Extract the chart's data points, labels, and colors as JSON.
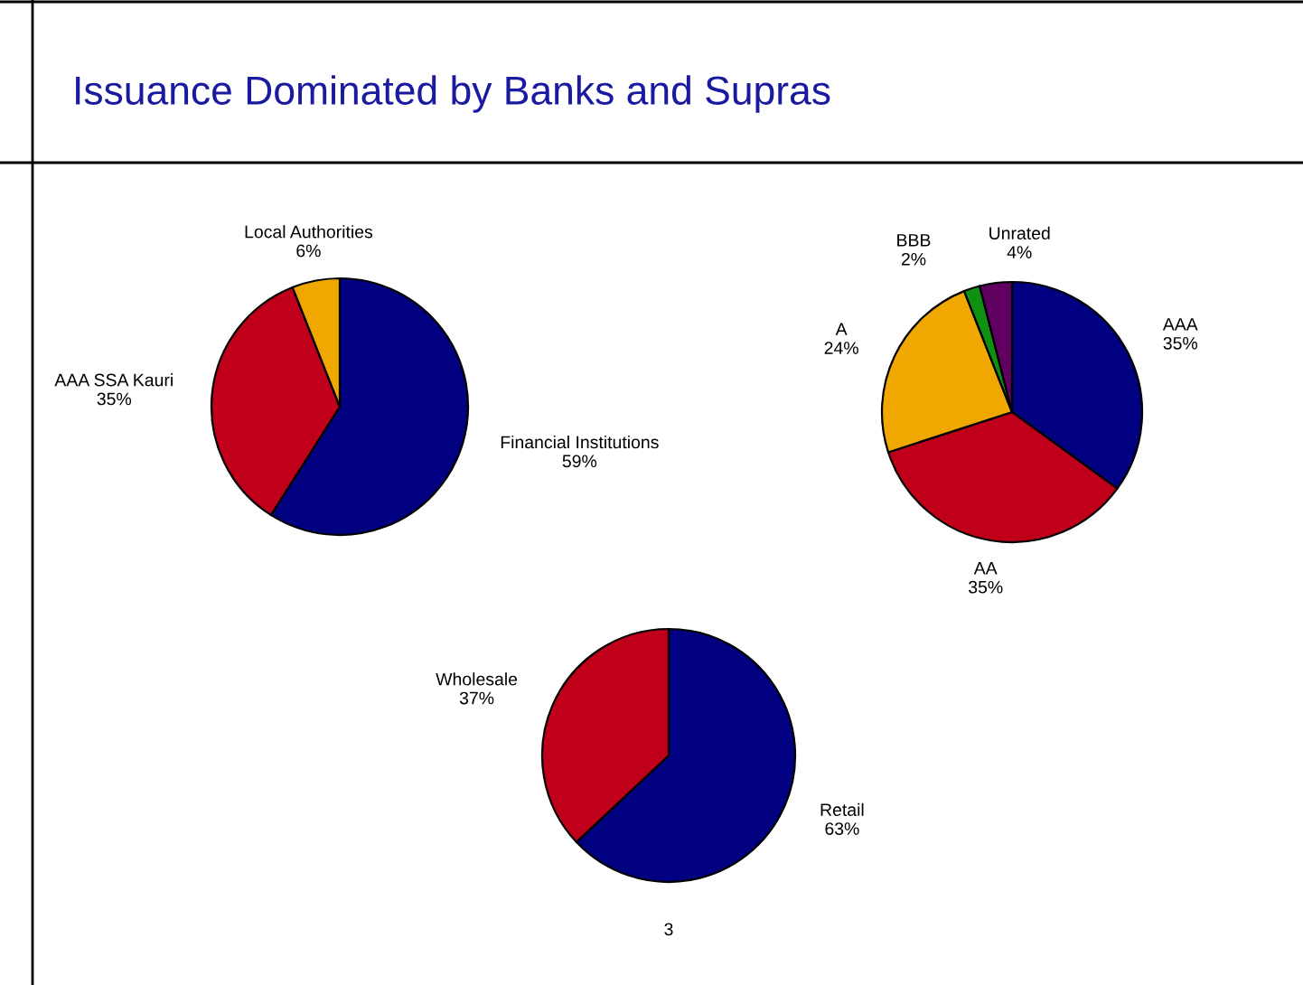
{
  "chart_data": [
    {
      "type": "pie",
      "title": "Issuance Dominated by Banks and Supras",
      "categories": [
        "Financial Institutions",
        "AAA SSA Kauri",
        "Local Authorities"
      ],
      "values": [
        59,
        35,
        6
      ],
      "value_labels": [
        "59%",
        "35%",
        "6%"
      ],
      "colors": [
        "#000080",
        "#c0001a",
        "#f0a800"
      ]
    },
    {
      "type": "pie",
      "categories": [
        "AAA",
        "AA",
        "A",
        "BBB",
        "Unrated"
      ],
      "values": [
        35,
        35,
        24,
        2,
        4
      ],
      "value_labels": [
        "35%",
        "35%",
        "24%",
        "2%",
        "4%"
      ],
      "colors": [
        "#000080",
        "#c0001a",
        "#f0a800",
        "#109010",
        "#600060"
      ]
    },
    {
      "type": "pie",
      "categories": [
        "Retail",
        "Wholesale"
      ],
      "values": [
        63,
        37
      ],
      "value_labels": [
        "63%",
        "37%"
      ],
      "colors": [
        "#000080",
        "#c0001a"
      ],
      "annotations": [
        "3"
      ]
    }
  ]
}
